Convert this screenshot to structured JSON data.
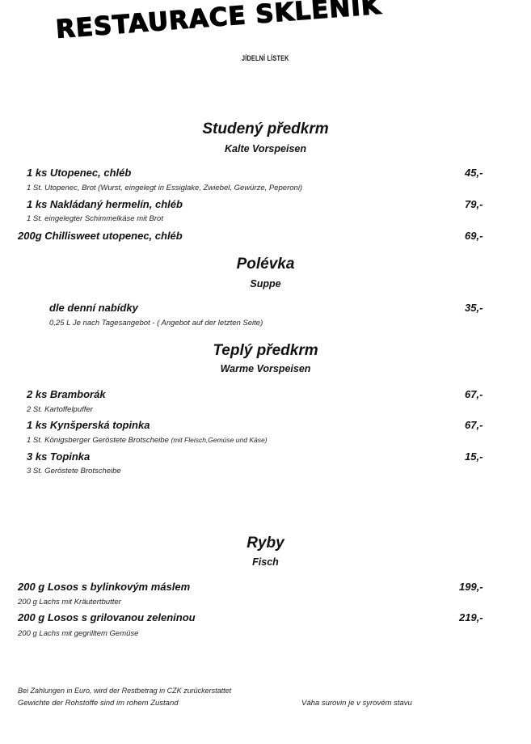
{
  "header": {
    "title": "RESTAURACE SKLENÍK",
    "subtitle": "JÍDELNÍ LÍSTEK"
  },
  "sections": [
    {
      "title": "Studený předkrm",
      "subtitle": "Kalte Vorspeisen",
      "items": [
        {
          "name": "1 ks Utopenec, chléb",
          "desc": "1 St. Utopenec, Brot (Wurst, eingelegt in Essiglake, Zwiebel, Gewürze, Peperoni)",
          "price": "45,-"
        },
        {
          "name": "1 ks Nakládaný hermelín, chléb",
          "desc": "1 St. eingelegter Schimmelkäse mit Brot",
          "price": "79,-"
        },
        {
          "name": "200g  Chillisweet utopenec, chléb",
          "price": "69,-"
        }
      ]
    },
    {
      "title": "Polévka",
      "subtitle": "Suppe",
      "items": [
        {
          "name": "dle denní nabídky",
          "desc": "0,25 L Je nach Tagesangebot - ( Angebot auf der letzten Seite)",
          "price": "35,-"
        }
      ]
    },
    {
      "title": "Teplý předkrm",
      "subtitle": "Warme Vorspeisen",
      "items": [
        {
          "name": "2 ks Bramborák",
          "desc": "2 St. Kartoffelpuffer",
          "price": "67,-"
        },
        {
          "name": "1 ks Kynšperská topinka",
          "desc": "1 St. Königsberger Geröstete Brotscheibe",
          "desc_extra": "(mit Fleisch,Gemüse und Käse)",
          "price": "67,-"
        },
        {
          "name": "3 ks Topinka",
          "desc": "3 St. Geröstete Brotscheibe",
          "price": "15,-"
        }
      ]
    },
    {
      "title": "Ryby",
      "subtitle": "Fisch",
      "items": [
        {
          "name": "200 g Losos s bylinkovým máslem",
          "desc": "200 g Lachs mit Kräutertbutter",
          "price": "199,-"
        },
        {
          "name": "200 g Losos s grilovanou zeleninou",
          "desc": "200 g Lachs mit gegrilltem Gemüse",
          "price": "219,-"
        }
      ]
    }
  ],
  "footer": {
    "line1": "Bei Zahlungen in Euro, wird der Restbetrag in CZK zurückerstattet",
    "line2": "Gewichte der Rohstoffe sind im rohem Zustand",
    "line2_right": "Váha surovin je v syrovém stavu"
  }
}
